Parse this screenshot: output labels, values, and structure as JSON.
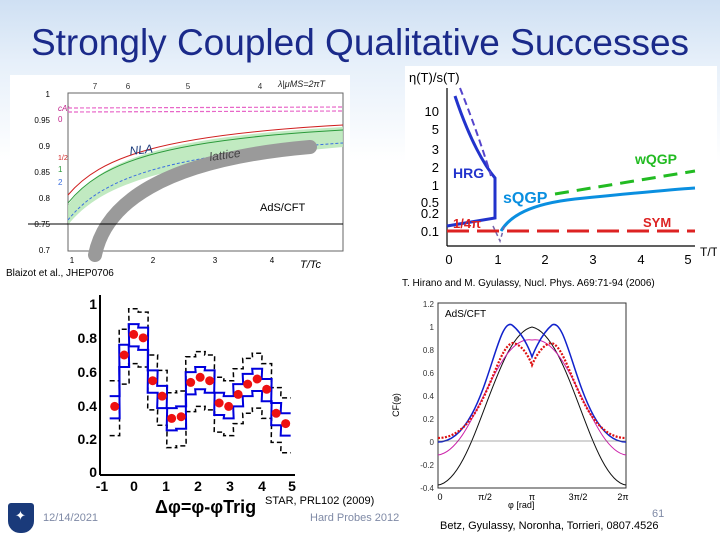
{
  "slide": {
    "title": "Strongly Coupled Qualitative Successes",
    "date": "12/14/2021",
    "conference": "Hard Probes 2012",
    "page_number": "61"
  },
  "citations": {
    "top_left": "Blaizot et al., JHEP0706",
    "top_right": "T. Hirano and M. Gyulassy, Nucl. Phys. A69:71-94 (2006)",
    "bottom_left": "STAR, PRL102 (2009)",
    "bottom_right": "Betz, Gyulassy, Noronha, Torrieri, 0807.4526"
  },
  "chart_data": [
    {
      "type": "line",
      "panel": "top-left",
      "xlabel": "T/Tc",
      "top_axis_label": "λ|μMS=2πT",
      "x_ticks": [
        "1",
        "2",
        "3",
        "4"
      ],
      "top_ticks": [
        "7",
        "6",
        "5",
        "4"
      ],
      "y_ticks": [
        "1",
        "0.95",
        "0.9",
        "0.85",
        "0.8",
        "0.75",
        "0.7"
      ],
      "ylim": [
        0.7,
        1.0
      ],
      "legend_title": "cA:",
      "legend_entries": [
        "0",
        "1/2",
        "1",
        "2"
      ],
      "labels": [
        "NLA",
        "lattice",
        "AdS/CFT"
      ],
      "ads_cft_value": 0.75,
      "colors": {
        "nla_band": "#b6e6b6",
        "lattice": "#9a9a9a",
        "pink": "#e866c8",
        "green": "#2a9a3a",
        "blue": "#3a6ee0"
      }
    },
    {
      "type": "line",
      "panel": "top-right",
      "ylabel": "η(T)/s(T)",
      "xlabel": "T/Tc",
      "x_ticks": [
        "0",
        "1",
        "2",
        "3",
        "4",
        "5"
      ],
      "y_ticks": [
        "10",
        "5",
        "3",
        "2",
        "1",
        "0.5",
        "0.2",
        "0.1"
      ],
      "labels": [
        "HRG",
        "sQGP",
        "wQGP",
        "1/4π",
        "SYM"
      ],
      "colors": {
        "hrg": "#2233cc",
        "sqgp": "#0a8fe0",
        "wqgp": "#22bb22",
        "bound": "#dd2222"
      }
    },
    {
      "type": "scatter",
      "panel": "bottom-left",
      "xlabel": "Δφ=φ-φTrig",
      "x_ticks": [
        "-1",
        "0",
        "1",
        "2",
        "3",
        "4",
        "5"
      ],
      "y_ticks": [
        "1",
        "0.8",
        "0.6",
        "0.4",
        "0.2",
        "0"
      ],
      "xlim": [
        -1,
        5
      ],
      "ylim": [
        0,
        1.05
      ],
      "series": [
        {
          "x": [
            -0.6,
            -0.3,
            0.0,
            0.3,
            0.6,
            0.9,
            1.2,
            1.5,
            1.8,
            2.1,
            2.4,
            2.7,
            3.0,
            3.3,
            3.6,
            3.9,
            4.2,
            4.5,
            4.8
          ],
          "values": [
            0.4,
            0.7,
            0.82,
            0.8,
            0.55,
            0.46,
            0.33,
            0.34,
            0.54,
            0.57,
            0.55,
            0.42,
            0.4,
            0.47,
            0.53,
            0.56,
            0.5,
            0.36,
            0.3
          ]
        }
      ],
      "colors": {
        "points": "#ee1111",
        "band": "#0000dd"
      }
    },
    {
      "type": "line",
      "panel": "bottom-right",
      "label": "AdS/CFT",
      "ylabel": "CF(φ)",
      "xlabel": "φ [rad]",
      "x_ticks": [
        "0",
        "π/2",
        "π",
        "3π/2",
        "2π"
      ],
      "y_ticks": [
        "1.2",
        "1",
        "0.8",
        "0.6",
        "0.4",
        "0.2",
        "0",
        "-0.2",
        "-0.4"
      ],
      "ylim": [
        -0.4,
        1.2
      ],
      "colors": {
        "black": "#111111",
        "blue": "#1122cc",
        "magenta": "#cc22aa",
        "red": "#dd1111"
      }
    }
  ]
}
